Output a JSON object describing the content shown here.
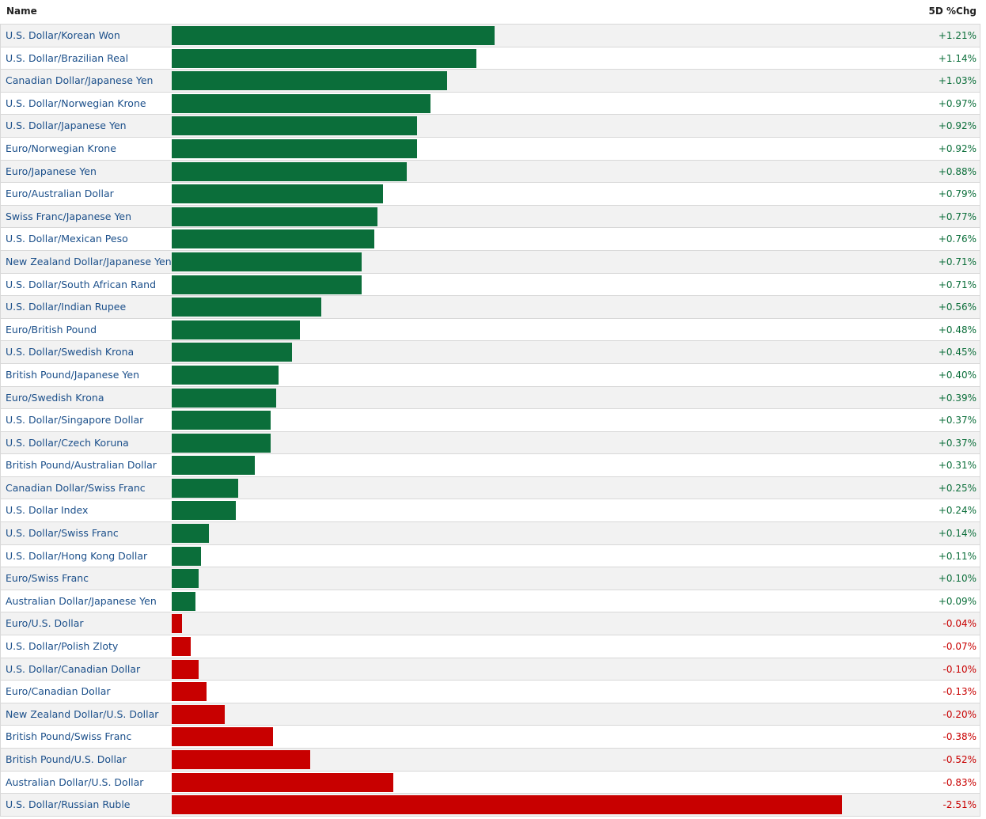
{
  "chart_data": {
    "type": "bar",
    "orientation": "horizontal",
    "columns": {
      "name": "Name",
      "change": "5D %Chg"
    },
    "scale_max": 2.51,
    "colors": {
      "positive": "#0b6e3a",
      "negative": "#c80000"
    },
    "rows": [
      {
        "name": "U.S. Dollar/Korean Won",
        "value": 1.21,
        "label": "+1.21%"
      },
      {
        "name": "U.S. Dollar/Brazilian Real",
        "value": 1.14,
        "label": "+1.14%"
      },
      {
        "name": "Canadian Dollar/Japanese Yen",
        "value": 1.03,
        "label": "+1.03%"
      },
      {
        "name": "U.S. Dollar/Norwegian Krone",
        "value": 0.97,
        "label": "+0.97%"
      },
      {
        "name": "U.S. Dollar/Japanese Yen",
        "value": 0.92,
        "label": "+0.92%"
      },
      {
        "name": "Euro/Norwegian Krone",
        "value": 0.92,
        "label": "+0.92%"
      },
      {
        "name": "Euro/Japanese Yen",
        "value": 0.88,
        "label": "+0.88%"
      },
      {
        "name": "Euro/Australian Dollar",
        "value": 0.79,
        "label": "+0.79%"
      },
      {
        "name": "Swiss Franc/Japanese Yen",
        "value": 0.77,
        "label": "+0.77%"
      },
      {
        "name": "U.S. Dollar/Mexican Peso",
        "value": 0.76,
        "label": "+0.76%"
      },
      {
        "name": "New Zealand Dollar/Japanese Yen",
        "value": 0.71,
        "label": "+0.71%"
      },
      {
        "name": "U.S. Dollar/South African Rand",
        "value": 0.71,
        "label": "+0.71%"
      },
      {
        "name": "U.S. Dollar/Indian Rupee",
        "value": 0.56,
        "label": "+0.56%"
      },
      {
        "name": "Euro/British Pound",
        "value": 0.48,
        "label": "+0.48%"
      },
      {
        "name": "U.S. Dollar/Swedish Krona",
        "value": 0.45,
        "label": "+0.45%"
      },
      {
        "name": "British Pound/Japanese Yen",
        "value": 0.4,
        "label": "+0.40%"
      },
      {
        "name": "Euro/Swedish Krona",
        "value": 0.39,
        "label": "+0.39%"
      },
      {
        "name": "U.S. Dollar/Singapore Dollar",
        "value": 0.37,
        "label": "+0.37%"
      },
      {
        "name": "U.S. Dollar/Czech Koruna",
        "value": 0.37,
        "label": "+0.37%"
      },
      {
        "name": "British Pound/Australian Dollar",
        "value": 0.31,
        "label": "+0.31%"
      },
      {
        "name": "Canadian Dollar/Swiss Franc",
        "value": 0.25,
        "label": "+0.25%"
      },
      {
        "name": "U.S. Dollar Index",
        "value": 0.24,
        "label": "+0.24%"
      },
      {
        "name": "U.S. Dollar/Swiss Franc",
        "value": 0.14,
        "label": "+0.14%"
      },
      {
        "name": "U.S. Dollar/Hong Kong Dollar",
        "value": 0.11,
        "label": "+0.11%"
      },
      {
        "name": "Euro/Swiss Franc",
        "value": 0.1,
        "label": "+0.10%"
      },
      {
        "name": "Australian Dollar/Japanese Yen",
        "value": 0.09,
        "label": "+0.09%"
      },
      {
        "name": "Euro/U.S. Dollar",
        "value": -0.04,
        "label": "-0.04%"
      },
      {
        "name": "U.S. Dollar/Polish Zloty",
        "value": -0.07,
        "label": "-0.07%"
      },
      {
        "name": "U.S. Dollar/Canadian Dollar",
        "value": -0.1,
        "label": "-0.10%"
      },
      {
        "name": "Euro/Canadian Dollar",
        "value": -0.13,
        "label": "-0.13%"
      },
      {
        "name": "New Zealand Dollar/U.S. Dollar",
        "value": -0.2,
        "label": "-0.20%"
      },
      {
        "name": "British Pound/Swiss Franc",
        "value": -0.38,
        "label": "-0.38%"
      },
      {
        "name": "British Pound/U.S. Dollar",
        "value": -0.52,
        "label": "-0.52%"
      },
      {
        "name": "Australian Dollar/U.S. Dollar",
        "value": -0.83,
        "label": "-0.83%"
      },
      {
        "name": "U.S. Dollar/Russian Ruble",
        "value": -2.51,
        "label": "-2.51%"
      }
    ]
  }
}
